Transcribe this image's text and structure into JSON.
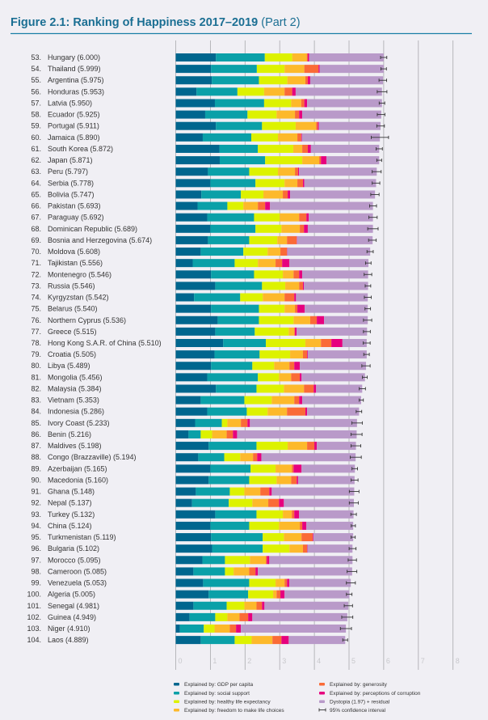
{
  "header": {
    "title": "Figure 2.1: Ranking of Happiness 2017–2019",
    "subtitle": "(Part 2)"
  },
  "chart_data": {
    "type": "bar",
    "orientation": "horizontal-stacked",
    "title": "Figure 2.1: Ranking of Happiness 2017–2019 (Part 2)",
    "xlim": [
      0,
      8
    ],
    "xticks": [
      "0",
      "1",
      "2",
      "3",
      "4",
      "5",
      "6",
      "7",
      "8"
    ],
    "grid": true,
    "legend_position": "bottom",
    "series": [
      {
        "name": "Explained by: GDP per capita",
        "color": "#00668e"
      },
      {
        "name": "Explained by: social support",
        "color": "#0aa0a8"
      },
      {
        "name": "Explained by: healthy life expectancy",
        "color": "#ddf200"
      },
      {
        "name": "Explained by: freedom to make life choices",
        "color": "#fdb92b"
      },
      {
        "name": "Explained by: generosity",
        "color": "#fa6b37"
      },
      {
        "name": "Explained by: perceptions of corruption",
        "color": "#e6007e"
      },
      {
        "name": "Dystopia (1.97) + residual",
        "color": "#b99ac9"
      }
    ],
    "ci_legend": "95% confidence interval",
    "rows": [
      {
        "rank": "53.",
        "label": "Hungary (6.000)",
        "score": 6.0,
        "values": [
          1.16,
          1.41,
          0.79,
          0.42,
          0.03,
          0.04,
          2.15
        ],
        "ci": 0.09
      },
      {
        "rank": "54.",
        "label": "Thailand (5.999)",
        "score": 5.999,
        "values": [
          1.02,
          1.32,
          0.8,
          0.57,
          0.41,
          0.03,
          1.85
        ],
        "ci": 0.08
      },
      {
        "rank": "55.",
        "label": "Argentina (5.975)",
        "score": 5.975,
        "values": [
          1.04,
          1.36,
          0.82,
          0.52,
          0.07,
          0.07,
          2.1
        ],
        "ci": 0.11
      },
      {
        "rank": "56.",
        "label": "Honduras (5.953)",
        "score": 5.953,
        "values": [
          0.6,
          1.18,
          0.77,
          0.59,
          0.22,
          0.1,
          2.49
        ],
        "ci": 0.14
      },
      {
        "rank": "57.",
        "label": "Latvia (5.950)",
        "score": 5.95,
        "values": [
          1.13,
          1.42,
          0.78,
          0.29,
          0.09,
          0.08,
          2.16
        ],
        "ci": 0.08
      },
      {
        "rank": "58.",
        "label": "Ecuador (5.925)",
        "score": 5.925,
        "values": [
          0.85,
          1.22,
          0.84,
          0.53,
          0.12,
          0.09,
          2.28
        ],
        "ci": 0.11
      },
      {
        "rank": "59.",
        "label": "Portugal (5.911)",
        "score": 5.911,
        "values": [
          1.16,
          1.33,
          0.97,
          0.59,
          0.05,
          0.03,
          1.78
        ],
        "ci": 0.11
      },
      {
        "rank": "60.",
        "label": "Jamaica (5.890)",
        "score": 5.89,
        "values": [
          0.78,
          1.4,
          0.77,
          0.56,
          0.11,
          0.02,
          2.25
        ],
        "ci": 0.25
      },
      {
        "rank": "61.",
        "label": "South Korea (5.872)",
        "score": 5.872,
        "values": [
          1.26,
          1.11,
          1.02,
          0.26,
          0.16,
          0.09,
          1.97
        ],
        "ci": 0.09
      },
      {
        "rank": "62.",
        "label": "Japan (5.871)",
        "score": 5.871,
        "values": [
          1.27,
          1.31,
          1.07,
          0.49,
          0.05,
          0.16,
          1.52
        ],
        "ci": 0.07
      },
      {
        "rank": "63.",
        "label": "Peru (5.797)",
        "score": 5.797,
        "values": [
          0.93,
          1.19,
          0.83,
          0.49,
          0.09,
          0.03,
          2.24
        ],
        "ci": 0.13
      },
      {
        "rank": "64.",
        "label": "Serbia (5.778)",
        "score": 5.778,
        "values": [
          1.0,
          1.3,
          0.84,
          0.37,
          0.16,
          0.04,
          2.07
        ],
        "ci": 0.11
      },
      {
        "rank": "65.",
        "label": "Bolivia (5.747)",
        "score": 5.747,
        "values": [
          0.74,
          1.14,
          0.65,
          0.56,
          0.14,
          0.07,
          2.45
        ],
        "ci": 0.12
      },
      {
        "rank": "66.",
        "label": "Pakistan (5.693)",
        "score": 5.693,
        "values": [
          0.63,
          0.86,
          0.46,
          0.42,
          0.21,
          0.14,
          2.97
        ],
        "ci": 0.1
      },
      {
        "rank": "67.",
        "label": "Paraguay (5.692)",
        "score": 5.692,
        "values": [
          0.91,
          1.35,
          0.74,
          0.56,
          0.21,
          0.07,
          1.85
        ],
        "ci": 0.12
      },
      {
        "rank": "68.",
        "label": "Dominican Republic (5.689)",
        "score": 5.689,
        "values": [
          1.0,
          1.3,
          0.75,
          0.53,
          0.12,
          0.11,
          1.88
        ],
        "ci": 0.15
      },
      {
        "rank": "69.",
        "label": "Bosnia and Herzegovina (5.674)",
        "score": 5.674,
        "values": [
          0.93,
          1.19,
          0.81,
          0.28,
          0.28,
          0.01,
          2.18
        ],
        "ci": 0.11
      },
      {
        "rank": "70.",
        "label": "Moldova (5.608)",
        "score": 5.608,
        "values": [
          0.72,
          1.23,
          0.7,
          0.37,
          0.19,
          0.01,
          2.39
        ],
        "ci": 0.09
      },
      {
        "rank": "71.",
        "label": "Tajikistan (5.556)",
        "score": 5.556,
        "values": [
          0.49,
          1.21,
          0.67,
          0.51,
          0.19,
          0.21,
          2.28
        ],
        "ci": 0.08
      },
      {
        "rank": "72.",
        "label": "Montenegro (5.546)",
        "score": 5.546,
        "values": [
          1.02,
          1.24,
          0.83,
          0.31,
          0.16,
          0.09,
          1.9
        ],
        "ci": 0.11
      },
      {
        "rank": "73.",
        "label": "Russia (5.546)",
        "score": 5.546,
        "values": [
          1.14,
          1.35,
          0.67,
          0.4,
          0.11,
          0.03,
          1.85
        ],
        "ci": 0.08
      },
      {
        "rank": "74.",
        "label": "Kyrgyzstan (5.542)",
        "score": 5.542,
        "values": [
          0.53,
          1.33,
          0.65,
          0.63,
          0.28,
          0.05,
          2.07
        ],
        "ci": 0.1
      },
      {
        "rank": "75.",
        "label": "Belarus (5.540)",
        "score": 5.54,
        "values": [
          1.02,
          1.38,
          0.74,
          0.3,
          0.07,
          0.21,
          1.82
        ],
        "ci": 0.08
      },
      {
        "rank": "76.",
        "label": "Northern Cyprus (5.536)",
        "score": 5.536,
        "values": [
          1.21,
          1.19,
          1.0,
          0.48,
          0.19,
          0.21,
          1.26
        ],
        "ci": 0.12
      },
      {
        "rank": "77.",
        "label": "Greece (5.515)",
        "score": 5.515,
        "values": [
          1.14,
          1.14,
          0.98,
          0.16,
          0.02,
          0.05,
          2.03
        ],
        "ci": 0.1
      },
      {
        "rank": "78.",
        "label": "Hong Kong S.A.R. of China (5.510)",
        "score": 5.51,
        "values": [
          1.37,
          1.23,
          1.14,
          0.45,
          0.3,
          0.32,
          0.7
        ],
        "ci": 0.1
      },
      {
        "rank": "79.",
        "label": "Croatia (5.505)",
        "score": 5.505,
        "values": [
          1.12,
          1.3,
          0.88,
          0.37,
          0.12,
          0.02,
          1.7
        ],
        "ci": 0.08
      },
      {
        "rank": "80.",
        "label": "Libya (5.489)",
        "score": 5.489,
        "values": [
          1.02,
          1.19,
          0.63,
          0.44,
          0.14,
          0.16,
          1.91
        ],
        "ci": 0.12
      },
      {
        "rank": "81.",
        "label": "Mongolia (5.456)",
        "score": 5.456,
        "values": [
          0.91,
          1.46,
          0.61,
          0.35,
          0.25,
          0.05,
          1.83
        ],
        "ci": 0.07
      },
      {
        "rank": "82.",
        "label": "Malaysia (5.384)",
        "score": 5.384,
        "values": [
          1.16,
          1.17,
          0.79,
          0.58,
          0.28,
          0.07,
          1.33
        ],
        "ci": 0.09
      },
      {
        "rank": "83.",
        "label": "Vietnam (5.353)",
        "score": 5.353,
        "values": [
          0.72,
          1.26,
          0.79,
          0.65,
          0.14,
          0.09,
          1.7
        ],
        "ci": 0.06
      },
      {
        "rank": "84.",
        "label": "Indonesia (5.286)",
        "score": 5.286,
        "values": [
          0.91,
          1.14,
          0.6,
          0.56,
          0.53,
          0.05,
          1.5
        ],
        "ci": 0.08
      },
      {
        "rank": "85.",
        "label": "Ivory Coast (5.233)",
        "score": 5.233,
        "values": [
          0.56,
          0.77,
          0.16,
          0.39,
          0.19,
          0.07,
          3.09
        ],
        "ci": 0.15
      },
      {
        "rank": "86.",
        "label": "Benin (5.216)",
        "score": 5.216,
        "values": [
          0.37,
          0.35,
          0.33,
          0.42,
          0.18,
          0.12,
          3.45
        ],
        "ci": 0.16
      },
      {
        "rank": "87.",
        "label": "Maldives (5.198)",
        "score": 5.198,
        "values": [
          0.95,
          1.38,
          0.9,
          0.56,
          0.21,
          0.07,
          1.13
        ],
        "ci": 0.14
      },
      {
        "rank": "88.",
        "label": "Congo (Brazzaville) (5.194)",
        "score": 5.194,
        "values": [
          0.65,
          0.75,
          0.46,
          0.37,
          0.12,
          0.12,
          2.72
        ],
        "ci": 0.16
      },
      {
        "rank": "89.",
        "label": "Azerbaijan (5.165)",
        "score": 5.165,
        "values": [
          1.0,
          1.16,
          0.72,
          0.47,
          0.05,
          0.23,
          1.54
        ],
        "ci": 0.08
      },
      {
        "rank": "90.",
        "label": "Macedonia (5.160)",
        "score": 5.16,
        "values": [
          0.95,
          1.17,
          0.79,
          0.42,
          0.16,
          0.04,
          1.63
        ],
        "ci": 0.1
      },
      {
        "rank": "91.",
        "label": "Ghana (5.148)",
        "score": 5.148,
        "values": [
          0.58,
          0.98,
          0.42,
          0.46,
          0.26,
          0.07,
          2.38
        ],
        "ci": 0.14
      },
      {
        "rank": "92.",
        "label": "Nepal (5.137)",
        "score": 5.137,
        "values": [
          0.47,
          1.06,
          0.68,
          0.46,
          0.31,
          0.14,
          2.02
        ],
        "ci": 0.13
      },
      {
        "rank": "93.",
        "label": "Turkey (5.132)",
        "score": 5.132,
        "values": [
          1.14,
          1.19,
          0.76,
          0.26,
          0.07,
          0.14,
          1.57
        ],
        "ci": 0.08
      },
      {
        "rank": "94.",
        "label": "China (5.124)",
        "score": 5.124,
        "values": [
          1.0,
          1.12,
          0.86,
          0.6,
          0.07,
          0.12,
          1.35
        ],
        "ci": 0.06
      },
      {
        "rank": "95.",
        "label": "Turkmenistan (5.119)",
        "score": 5.119,
        "values": [
          1.02,
          1.49,
          0.61,
          0.51,
          0.32,
          0.02,
          1.15
        ],
        "ci": 0.06
      },
      {
        "rank": "96.",
        "label": "Bulgaria (5.102)",
        "score": 5.102,
        "values": [
          1.05,
          1.46,
          0.77,
          0.39,
          0.12,
          0.01,
          1.3
        ],
        "ci": 0.1
      },
      {
        "rank": "97.",
        "label": "Morocco (5.095)",
        "score": 5.095,
        "values": [
          0.77,
          0.65,
          0.72,
          0.46,
          0.03,
          0.07,
          2.4
        ],
        "ci": 0.12
      },
      {
        "rank": "98.",
        "label": "Cameroon (5.085)",
        "score": 5.085,
        "values": [
          0.51,
          0.91,
          0.25,
          0.45,
          0.18,
          0.07,
          2.72
        ],
        "ci": 0.14
      },
      {
        "rank": "99.",
        "label": "Venezuela (5.053)",
        "score": 5.053,
        "values": [
          0.79,
          1.33,
          0.76,
          0.26,
          0.07,
          0.07,
          1.77
        ],
        "ci": 0.13
      },
      {
        "rank": "100.",
        "label": "Algeria (5.005)",
        "score": 5.005,
        "values": [
          0.95,
          1.14,
          0.72,
          0.1,
          0.11,
          0.12,
          1.87
        ],
        "ci": 0.08
      },
      {
        "rank": "101.",
        "label": "Senegal (4.981)",
        "score": 4.981,
        "values": [
          0.51,
          0.96,
          0.51,
          0.35,
          0.16,
          0.07,
          2.42
        ],
        "ci": 0.12
      },
      {
        "rank": "102.",
        "label": "Guinea (4.949)",
        "score": 4.949,
        "values": [
          0.4,
          0.74,
          0.35,
          0.35,
          0.25,
          0.12,
          2.74
        ],
        "ci": 0.16
      },
      {
        "rank": "103.",
        "label": "Niger (4.910)",
        "score": 4.91,
        "values": [
          0.12,
          0.69,
          0.31,
          0.44,
          0.18,
          0.14,
          3.03
        ],
        "ci": 0.16
      },
      {
        "rank": "104.",
        "label": "Laos (4.889)",
        "score": 4.889,
        "values": [
          0.72,
          0.98,
          0.49,
          0.6,
          0.26,
          0.21,
          1.63
        ],
        "ci": 0.07
      }
    ]
  }
}
